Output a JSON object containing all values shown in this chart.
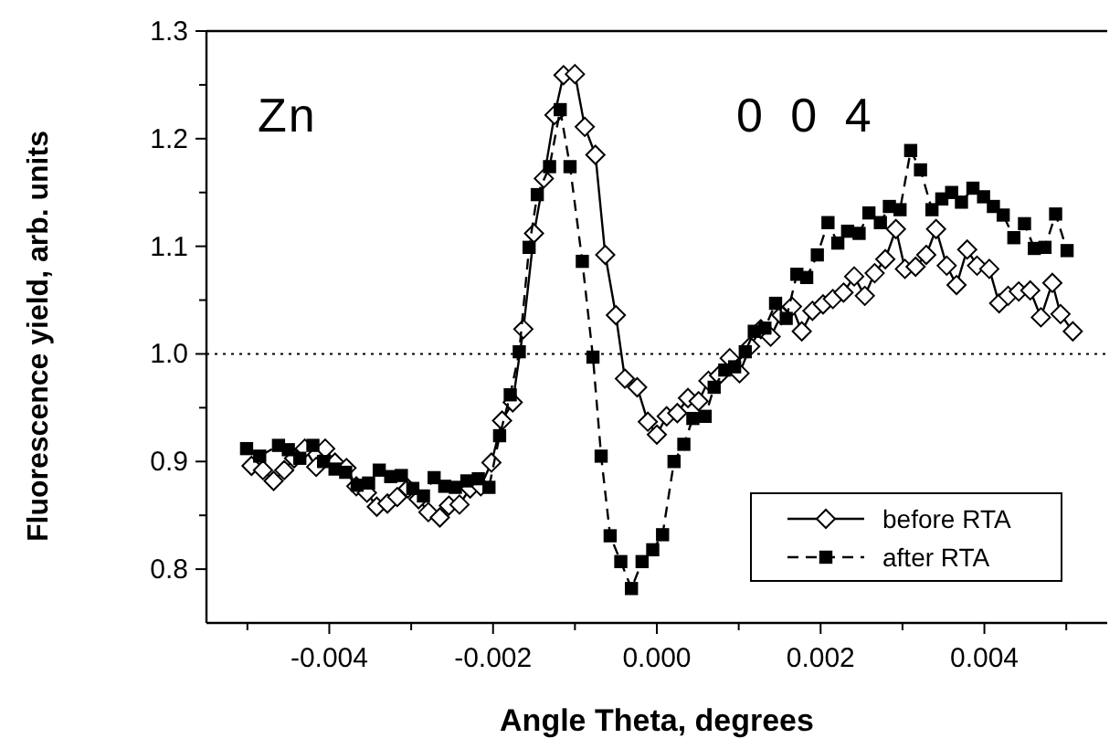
{
  "chart_data": {
    "type": "line",
    "xlabel": "Angle Theta, degrees",
    "ylabel": "Fluorescence yield, arb. units",
    "xlim": [
      -0.0055,
      0.0055
    ],
    "ylim": [
      0.75,
      1.3
    ],
    "xticks": [
      {
        "value": -0.005,
        "label": null
      },
      {
        "value": -0.004,
        "label": "-0.004"
      },
      {
        "value": -0.003,
        "label": null
      },
      {
        "value": -0.002,
        "label": "-0.002"
      },
      {
        "value": -0.001,
        "label": null
      },
      {
        "value": 0,
        "label": "0.000"
      },
      {
        "value": 0.001,
        "label": null
      },
      {
        "value": 0.002,
        "label": "0.002"
      },
      {
        "value": 0.003,
        "label": null
      },
      {
        "value": 0.004,
        "label": "0.004"
      },
      {
        "value": 0.005,
        "label": null
      }
    ],
    "yticks": [
      {
        "value": 0.8,
        "label": "0.8"
      },
      {
        "value": 0.85,
        "label": null
      },
      {
        "value": 0.9,
        "label": "0.9"
      },
      {
        "value": 0.95,
        "label": null
      },
      {
        "value": 1.0,
        "label": "1.0"
      },
      {
        "value": 1.05,
        "label": null
      },
      {
        "value": 1.1,
        "label": "1.1"
      },
      {
        "value": 1.15,
        "label": null
      },
      {
        "value": 1.2,
        "label": "1.2"
      },
      {
        "value": 1.25,
        "label": null
      },
      {
        "value": 1.3,
        "label": "1.3"
      }
    ],
    "grid": false,
    "legend": "bottom right",
    "ref_lines": [
      {
        "axis": "y",
        "value": 1.0,
        "line_style": "dotted",
        "color": "#000000"
      }
    ],
    "annotations": [
      {
        "text": "Zn"
      },
      {
        "text": "0 0 4"
      }
    ],
    "series": [
      {
        "name": "before RTA",
        "color": "#000000",
        "marker": "diamond",
        "line_style": "solid",
        "x": [
          -0.00495,
          -0.00481,
          -0.00468,
          -0.00455,
          -0.00443,
          -0.0043,
          -0.00416,
          -0.00405,
          -0.00393,
          -0.00379,
          -0.00367,
          -0.00354,
          -0.00342,
          -0.00329,
          -0.00317,
          -0.00304,
          -0.00291,
          -0.00279,
          -0.00265,
          -0.00254,
          -0.00241,
          -0.00228,
          -0.00215,
          -0.00202,
          -0.00189,
          -0.00176,
          -0.00163,
          -0.0015,
          -0.00138,
          -0.00125,
          -0.00114,
          -0.001,
          -0.00088,
          -0.00075,
          -0.00063,
          -0.0005,
          -0.00039,
          -0.00024,
          -0.00011,
          0,
          0.00012,
          0.00025,
          0.00038,
          0.00051,
          0.00063,
          0.00076,
          0.00089,
          0.00101,
          0.00114,
          0.00127,
          0.00139,
          0.00152,
          0.00165,
          0.00177,
          0.0019,
          0.00203,
          0.00215,
          0.00228,
          0.00241,
          0.00254,
          0.00266,
          0.00279,
          0.00292,
          0.00303,
          0.00316,
          0.00329,
          0.00341,
          0.00354,
          0.00366,
          0.00379,
          0.00391,
          0.00406,
          0.00418,
          0.00429,
          0.00442,
          0.00456,
          0.00469,
          0.00483,
          0.00493,
          0.00508
        ],
        "values": [
          0.896,
          0.892,
          0.882,
          0.892,
          0.903,
          0.912,
          0.895,
          0.912,
          0.899,
          0.894,
          0.877,
          0.871,
          0.858,
          0.861,
          0.867,
          0.875,
          0.865,
          0.853,
          0.848,
          0.859,
          0.86,
          0.875,
          0.877,
          0.899,
          0.938,
          0.955,
          1.023,
          1.112,
          1.163,
          1.222,
          1.259,
          1.26,
          1.211,
          1.185,
          1.092,
          1.036,
          0.977,
          0.969,
          0.937,
          0.925,
          0.942,
          0.945,
          0.959,
          0.956,
          0.975,
          0.98,
          0.996,
          0.982,
          1.007,
          1.023,
          1.016,
          1.036,
          1.044,
          1.021,
          1.04,
          1.046,
          1.051,
          1.057,
          1.072,
          1.054,
          1.075,
          1.088,
          1.116,
          1.079,
          1.081,
          1.092,
          1.116,
          1.082,
          1.064,
          1.097,
          1.082,
          1.079,
          1.047,
          1.054,
          1.058,
          1.059,
          1.034,
          1.066,
          1.037,
          1.021
        ]
      },
      {
        "name": "after RTA",
        "color": "#000000",
        "marker": "square",
        "line_style": "dashed",
        "x": [
          -0.00501,
          -0.00485,
          -0.00462,
          -0.0045,
          -0.00436,
          -0.0042,
          -0.00407,
          -0.00393,
          -0.0038,
          -0.00366,
          -0.00352,
          -0.00339,
          -0.00325,
          -0.00312,
          -0.00298,
          -0.00285,
          -0.00272,
          -0.00259,
          -0.00246,
          -0.00232,
          -0.00218,
          -0.00205,
          -0.00192,
          -0.00179,
          -0.00168,
          -0.00156,
          -0.00146,
          -0.00131,
          -0.00118,
          -0.00106,
          -0.00091,
          -0.00078,
          -0.00068,
          -0.00057,
          -0.00044,
          -0.00031,
          -0.00018,
          -5e-05,
          7e-05,
          0.00021,
          0.00033,
          0.00044,
          0.00059,
          0.0007,
          0.00083,
          0.00095,
          0.00108,
          0.00119,
          0.00132,
          0.00145,
          0.00158,
          0.00171,
          0.00183,
          0.00196,
          0.00209,
          0.00221,
          0.00233,
          0.00247,
          0.00259,
          0.00273,
          0.00284,
          0.00297,
          0.0031,
          0.00322,
          0.00336,
          0.00348,
          0.0036,
          0.00372,
          0.00386,
          0.00399,
          0.00411,
          0.00423,
          0.00436,
          0.00449,
          0.00461,
          0.00474,
          0.00487,
          0.00501
        ],
        "values": [
          0.912,
          0.905,
          0.915,
          0.911,
          0.903,
          0.915,
          0.9,
          0.893,
          0.89,
          0.878,
          0.88,
          0.892,
          0.886,
          0.887,
          0.875,
          0.868,
          0.885,
          0.877,
          0.876,
          0.882,
          0.884,
          0.876,
          0.924,
          0.962,
          1.002,
          1.099,
          1.148,
          1.174,
          1.227,
          1.174,
          1.086,
          0.997,
          0.905,
          0.831,
          0.807,
          0.782,
          0.807,
          0.818,
          0.832,
          0.9,
          0.916,
          0.94,
          0.942,
          0.969,
          0.985,
          0.988,
          1.002,
          1.021,
          1.024,
          1.047,
          1.033,
          1.074,
          1.071,
          1.092,
          1.122,
          1.103,
          1.114,
          1.112,
          1.131,
          1.122,
          1.137,
          1.134,
          1.189,
          1.171,
          1.134,
          1.144,
          1.15,
          1.141,
          1.154,
          1.146,
          1.137,
          1.129,
          1.108,
          1.121,
          1.098,
          1.099,
          1.13,
          1.096
        ]
      }
    ]
  }
}
